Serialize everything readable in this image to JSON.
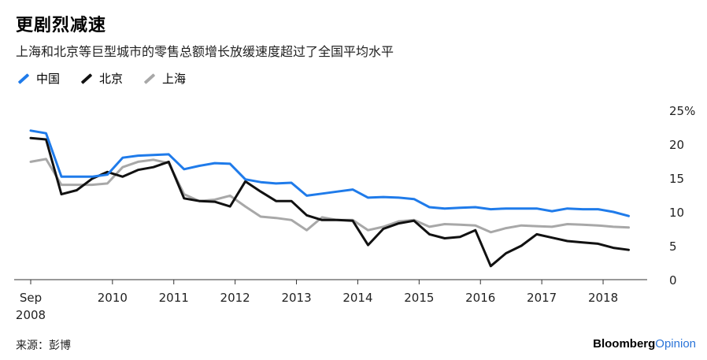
{
  "header": {
    "title": "更剧烈减速",
    "subtitle": "上海和北京等巨型城市的零售总额增长放缓速度超过了全国平均水平"
  },
  "footer": {
    "source": "来源：彭博",
    "brand_part1": "Bloomberg",
    "brand_part2": "Opinion"
  },
  "colors": {
    "china": "#1f7bea",
    "beijing": "#111111",
    "shanghai": "#a8a8a8",
    "axis": "#333333",
    "brand_accent": "#2a74d8"
  },
  "chart_data": {
    "type": "line",
    "title": "更剧烈减速",
    "subtitle": "上海和北京等巨型城市的零售总额增长放缓速度超过了全国平均水平",
    "ylim": [
      0,
      25
    ],
    "yticks": [
      0,
      5,
      10,
      15,
      20,
      25
    ],
    "ytick_labels": [
      "0",
      "5",
      "10",
      "15",
      "20",
      "25%"
    ],
    "xlim": [
      2008.667,
      2018.667
    ],
    "xticks": [
      2008.667,
      2010,
      2011,
      2012,
      2013,
      2014,
      2015,
      2016,
      2017,
      2018
    ],
    "xtick_labels": [
      "Sep\n2008",
      "2010",
      "2011",
      "2012",
      "2013",
      "2014",
      "2015",
      "2016",
      "2017",
      "2018"
    ],
    "legend_position": "top-left",
    "grid": false,
    "x": [
      2008.667,
      2008.917,
      2009.167,
      2009.417,
      2009.667,
      2009.917,
      2010.167,
      2010.417,
      2010.667,
      2010.917,
      2011.167,
      2011.417,
      2011.667,
      2011.917,
      2012.167,
      2012.417,
      2012.667,
      2012.917,
      2013.167,
      2013.417,
      2013.667,
      2013.917,
      2014.167,
      2014.417,
      2014.667,
      2014.917,
      2015.167,
      2015.417,
      2015.667,
      2015.917,
      2016.167,
      2016.417,
      2016.667,
      2016.917,
      2017.167,
      2017.417,
      2017.667,
      2017.917,
      2018.167,
      2018.417
    ],
    "series": [
      {
        "name": "中国",
        "color": "#1f7bea",
        "values": [
          22.0,
          21.6,
          15.2,
          15.2,
          15.2,
          15.5,
          18.0,
          18.3,
          18.4,
          18.5,
          16.3,
          16.8,
          17.2,
          17.1,
          14.8,
          14.4,
          14.2,
          14.3,
          12.4,
          12.7,
          13.0,
          13.3,
          12.1,
          12.2,
          12.1,
          11.9,
          10.7,
          10.5,
          10.6,
          10.7,
          10.4,
          10.5,
          10.5,
          10.5,
          10.1,
          10.5,
          10.4,
          10.4,
          10.0,
          9.4
        ]
      },
      {
        "name": "北京",
        "color": "#111111",
        "values": [
          20.9,
          20.7,
          12.6,
          13.2,
          14.9,
          15.9,
          15.2,
          16.2,
          16.6,
          17.4,
          12.0,
          11.6,
          11.5,
          10.8,
          14.5,
          13.0,
          11.6,
          11.6,
          9.5,
          8.8,
          8.8,
          8.7,
          5.1,
          7.5,
          8.3,
          8.7,
          6.7,
          6.1,
          6.3,
          7.3,
          2.0,
          3.9,
          5.0,
          6.7,
          6.2,
          5.7,
          5.5,
          5.3,
          4.7,
          4.4
        ]
      },
      {
        "name": "上海",
        "color": "#a8a8a8",
        "values": [
          17.4,
          17.8,
          14.0,
          14.0,
          14.0,
          14.2,
          16.6,
          17.4,
          17.7,
          17.2,
          12.6,
          11.6,
          11.8,
          12.4,
          10.8,
          9.3,
          9.1,
          8.8,
          7.3,
          9.2,
          8.8,
          8.8,
          7.3,
          7.8,
          8.6,
          8.8,
          7.8,
          8.2,
          8.1,
          8.0,
          7.0,
          7.6,
          8.0,
          7.9,
          7.8,
          8.2,
          8.1,
          8.0,
          7.8,
          7.7
        ]
      }
    ]
  }
}
